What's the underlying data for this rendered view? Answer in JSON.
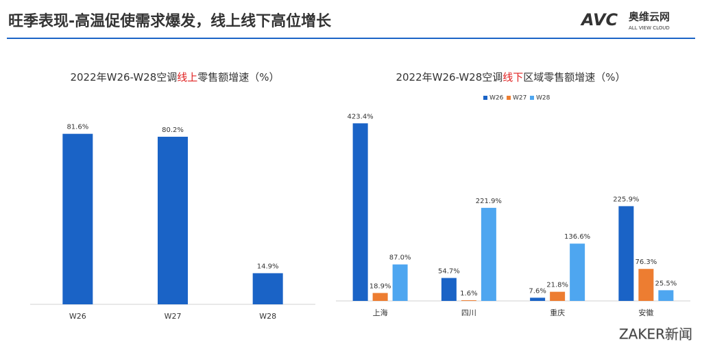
{
  "header": {
    "title": "旺季表现-高温促使需求爆发，线上线下高位增长",
    "logo": "AVC",
    "logo_cn": "奥维云网",
    "logo_en": "ALL VIEW CLOUD"
  },
  "footer": {
    "source": "ZAKER新闻"
  },
  "chart_data": [
    {
      "type": "bar",
      "title": [
        "2022年W26-W28空调",
        "线上",
        "零售额增速（%）"
      ],
      "title_colors": [
        "#333333",
        "#e02020",
        "#333333"
      ],
      "categories": [
        "W26",
        "W27",
        "W28"
      ],
      "values": [
        81.6,
        80.2,
        14.9
      ],
      "value_labels": [
        "81.6%",
        "80.2%",
        "14.9%"
      ],
      "color": "#1a63c6",
      "ylim": [
        0,
        90
      ]
    },
    {
      "type": "bar",
      "title": [
        "2022年W26-W28空调",
        "线下",
        "区域零售额增速（%）"
      ],
      "title_colors": [
        "#333333",
        "#e02020",
        "#333333"
      ],
      "categories": [
        "上海",
        "四川",
        "重庆",
        "安徽"
      ],
      "series": [
        {
          "name": "W26",
          "color": "#1a63c6",
          "values": [
            423.4,
            54.7,
            7.6,
            225.9
          ],
          "value_labels": [
            "423.4%",
            "54.7%",
            "7.6%",
            "225.9%"
          ]
        },
        {
          "name": "W27",
          "color": "#ed7d31",
          "values": [
            18.9,
            1.6,
            21.8,
            76.3
          ],
          "value_labels": [
            "18.9%",
            "1.6%",
            "21.8%",
            "76.3%"
          ]
        },
        {
          "name": "W28",
          "color": "#4ea6f0",
          "values": [
            87.0,
            221.9,
            136.6,
            25.5
          ],
          "value_labels": [
            "87.0%",
            "221.9%",
            "136.6%",
            "25.5%"
          ]
        }
      ],
      "ylim": [
        0,
        450
      ],
      "legend": "top"
    }
  ]
}
